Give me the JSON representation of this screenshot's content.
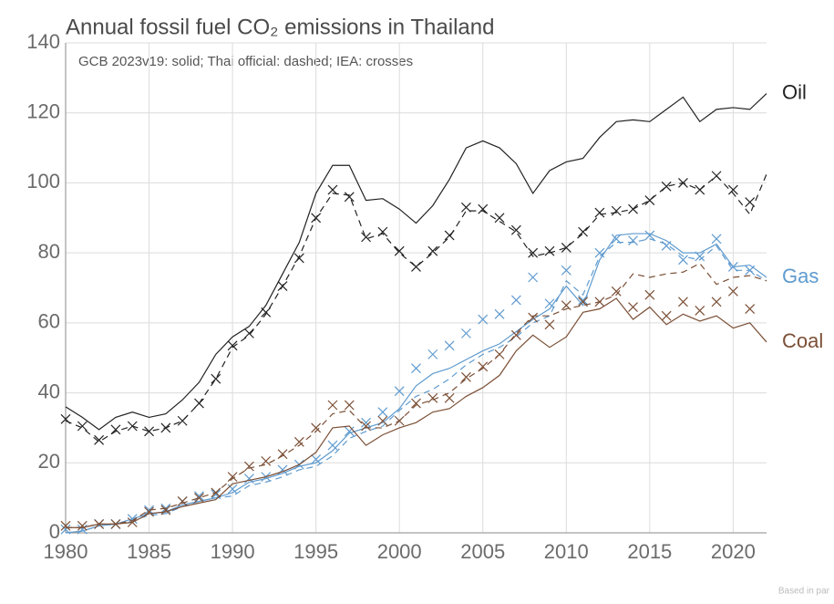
{
  "chart_data": {
    "type": "line",
    "title": "Annual fossil fuel CO₂ emissions in Thailand",
    "subtitle": "GCB 2023v19: solid; Thai official: dashed; IEA: crosses",
    "footnote": "Based in par",
    "x": [
      1980,
      1981,
      1982,
      1983,
      1984,
      1985,
      1986,
      1987,
      1988,
      1989,
      1990,
      1991,
      1992,
      1993,
      1994,
      1995,
      1996,
      1997,
      1998,
      1999,
      2000,
      2001,
      2002,
      2003,
      2004,
      2005,
      2006,
      2007,
      2008,
      2009,
      2010,
      2011,
      2012,
      2013,
      2014,
      2015,
      2016,
      2017,
      2018,
      2019,
      2020,
      2021,
      2022
    ],
    "xlim": [
      1980,
      2022
    ],
    "xticks": [
      1980,
      1985,
      1990,
      1995,
      2000,
      2005,
      2010,
      2015,
      2020
    ],
    "ylim": [
      0,
      140
    ],
    "yticks": [
      0,
      20,
      40,
      60,
      80,
      100,
      120,
      140
    ],
    "grid": true,
    "series": [
      {
        "name": "Oil",
        "color": "#222222",
        "style": "solid",
        "values": [
          36,
          33,
          29.5,
          33,
          34.5,
          33,
          34,
          38,
          43,
          51,
          56,
          59,
          65,
          74,
          83,
          97,
          105,
          105,
          95,
          95.5,
          92.5,
          88.5,
          93.5,
          101,
          110,
          112,
          110,
          105.5,
          97,
          103.5,
          106,
          107,
          113,
          117.5,
          118,
          117.5,
          121,
          124.5,
          117.5,
          121,
          121.5,
          121,
          125.5
        ]
      },
      {
        "color": "#222222",
        "style": "dashed",
        "values": [
          32,
          30,
          26,
          29,
          30.5,
          29,
          30,
          32,
          37,
          44,
          53,
          56.5,
          62.5,
          70.5,
          79,
          90,
          97,
          96.5,
          84,
          85.5,
          80,
          76,
          80,
          84.5,
          92,
          92,
          89,
          86,
          79,
          80,
          81.5,
          85.5,
          91,
          91.5,
          92.5,
          95,
          99,
          100,
          98,
          102,
          97,
          91,
          102.5
        ]
      },
      {
        "color": "#222222",
        "style": "crosses",
        "values": [
          32.5,
          30.5,
          26.5,
          29.5,
          30.5,
          29,
          30,
          32,
          37,
          44,
          53.5,
          57,
          63,
          70.5,
          78.5,
          90,
          98,
          96,
          84.5,
          86,
          80.5,
          76,
          80.5,
          85,
          93,
          92.5,
          90,
          86.5,
          80,
          80.5,
          81.5,
          86,
          91.5,
          92,
          92.5,
          95,
          99,
          100,
          98,
          102,
          98,
          94.5,
          null
        ]
      },
      {
        "name": "Gas",
        "color": "#5f9bcf",
        "style": "solid",
        "values": [
          0,
          0.5,
          2,
          2.5,
          4,
          5.5,
          6,
          8,
          9,
          10,
          11.5,
          14.5,
          15.5,
          17,
          19,
          20,
          23.5,
          28.5,
          30,
          31.5,
          35.5,
          42,
          45.5,
          47,
          49.5,
          52,
          54,
          57.5,
          61,
          64,
          70.5,
          65,
          78,
          85,
          85.5,
          85.5,
          83.5,
          80,
          80,
          82.5,
          76,
          76.5,
          73
        ]
      },
      {
        "color": "#5f9bcf",
        "style": "dashed",
        "values": [
          0,
          0.5,
          2,
          2.5,
          3.5,
          5,
          5.5,
          7.5,
          9,
          10,
          10.5,
          13.5,
          14.5,
          16,
          18,
          19,
          22,
          27,
          29,
          30.5,
          35,
          39,
          41,
          44,
          48,
          51,
          53,
          56,
          60,
          62,
          72,
          68,
          79,
          83,
          83,
          84,
          82.5,
          79,
          78,
          82,
          75,
          75,
          72
        ]
      },
      {
        "color": "#5f9bcf",
        "style": "crosses",
        "values": [
          1,
          1,
          2.5,
          2.5,
          4,
          6.5,
          7,
          9,
          10.5,
          11,
          12.5,
          15.5,
          16,
          18,
          19.5,
          21,
          25,
          29,
          31.5,
          34.5,
          40.5,
          47,
          51,
          53.5,
          57,
          61,
          62.5,
          66.5,
          73,
          65.5,
          75,
          66.5,
          80,
          84,
          83.5,
          85,
          82,
          78,
          79,
          84,
          76,
          75,
          null
        ]
      },
      {
        "name": "Coal",
        "color": "#7b4f36",
        "style": "solid",
        "values": [
          1.5,
          1.5,
          2.5,
          2.5,
          3,
          5.5,
          6,
          7.5,
          8.5,
          9.5,
          14,
          15,
          16,
          17.5,
          19.5,
          23,
          30,
          30.5,
          25,
          28,
          30,
          31.5,
          34.5,
          35.5,
          39,
          41.5,
          45,
          52,
          56.5,
          53,
          56,
          63,
          64,
          67,
          61,
          64.5,
          59.5,
          62.5,
          60.5,
          62,
          58.5,
          60,
          54.5
        ]
      },
      {
        "color": "#7b4f36",
        "style": "dashed",
        "values": [
          1.5,
          1.5,
          2.5,
          2.5,
          3.5,
          6.5,
          7,
          8.5,
          10,
          11.5,
          15.5,
          18.5,
          19.5,
          22,
          25,
          29,
          34,
          35,
          30,
          30,
          32,
          36.5,
          38,
          40,
          44,
          47,
          51,
          57,
          62,
          62,
          64,
          65,
          66,
          68,
          74,
          73,
          74,
          74.5,
          77,
          71,
          73,
          73.5,
          72
        ]
      },
      {
        "color": "#7b4f36",
        "style": "crosses",
        "values": [
          2,
          2,
          2.5,
          2.5,
          3,
          6,
          6.5,
          9,
          10,
          11.5,
          16,
          19,
          20.5,
          22.5,
          26,
          30,
          36.5,
          36.5,
          30.5,
          32,
          32,
          37,
          38.5,
          38.5,
          44.5,
          47.5,
          51,
          56.5,
          61.5,
          59.5,
          65,
          66,
          66,
          69,
          64.5,
          68,
          62,
          66,
          63.5,
          66,
          69,
          64,
          null
        ]
      }
    ]
  }
}
